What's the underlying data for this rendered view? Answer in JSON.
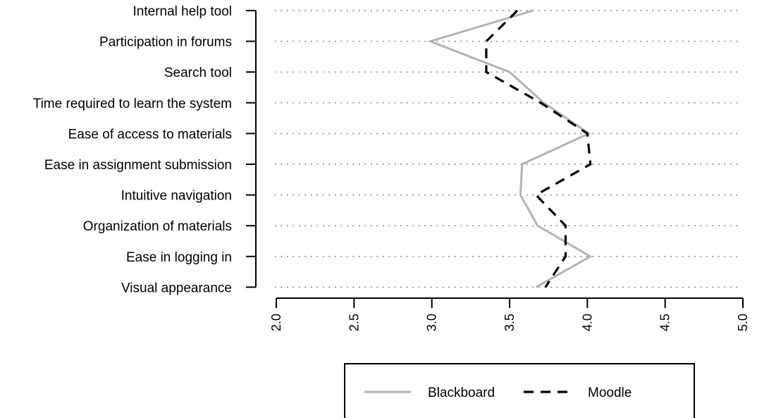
{
  "chart_data": {
    "type": "line",
    "orientation": "horizontal",
    "categories": [
      "Internal help tool",
      "Participation in forums",
      "Search tool",
      "Time required to learn the system",
      "Ease of access to materials",
      "Ease in assignment submission",
      "Intuitive navigation",
      "Organization of materials",
      "Ease in logging in",
      "Visual appearance"
    ],
    "series": [
      {
        "name": "Blackboard",
        "color": "#b3b3b3",
        "style": "solid",
        "values": [
          3.65,
          2.99,
          3.5,
          3.72,
          4.01,
          3.58,
          3.57,
          3.68,
          4.02,
          3.67
        ]
      },
      {
        "name": "Moodle",
        "color": "#000000",
        "style": "dashed",
        "values": [
          3.55,
          3.35,
          3.35,
          3.7,
          4.0,
          4.02,
          3.67,
          3.86,
          3.86,
          3.73
        ]
      }
    ],
    "xlim": [
      2.0,
      5.0
    ],
    "xticks": [
      "2.0",
      "2.5",
      "3.0",
      "3.5",
      "4.0",
      "4.5",
      "5.0"
    ],
    "tick_label_rotation": "vertical",
    "grid": "dotted horizontal",
    "legend_position": "bottom"
  }
}
